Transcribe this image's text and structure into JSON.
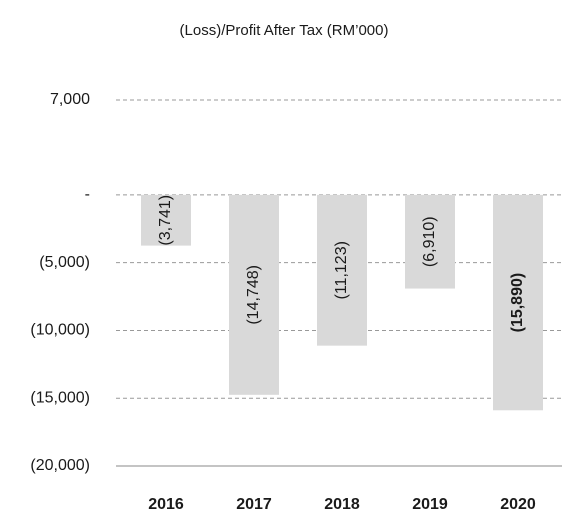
{
  "chart_data": {
    "type": "bar",
    "title": "(Loss)/Profit After Tax (RM’000)",
    "categories": [
      "2016",
      "2017",
      "2018",
      "2019",
      "2020"
    ],
    "values": [
      -3741,
      -14748,
      -11123,
      -6910,
      -15890
    ],
    "value_labels": [
      "(3,741)",
      "(14,748)",
      "(11,123)",
      "(6,910)",
      "(15,890)"
    ],
    "color": "#d9d9d9",
    "highlight": "2020",
    "ylim": [
      -20000,
      7000
    ],
    "yticks": [
      {
        "value": 7000,
        "label": "7,000"
      },
      {
        "value": 0,
        "label": "-"
      },
      {
        "value": -5000,
        "label": "(5,000)"
      },
      {
        "value": -10000,
        "label": "(10,000)"
      },
      {
        "value": -15000,
        "label": "(15,000)"
      },
      {
        "value": -20000,
        "label": "(20,000)"
      }
    ],
    "grid": true
  }
}
